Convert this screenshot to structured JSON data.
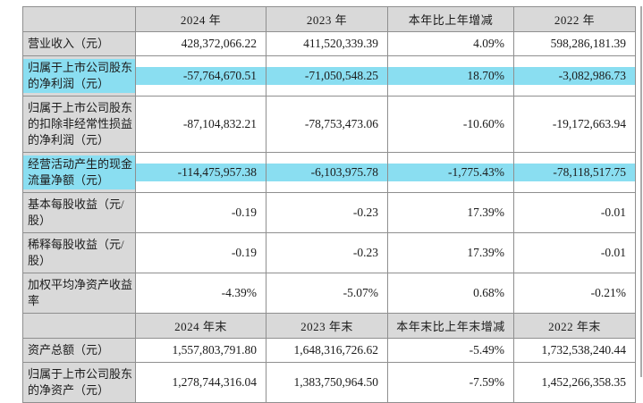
{
  "colors": {
    "page_bg": "#ffffff",
    "header_bg": "#d9d9d9",
    "label_bg": "#d9d9d9",
    "highlight": "#8adef1",
    "border": "#8f8f8f",
    "text": "#1b1b1b"
  },
  "table": {
    "sections": [
      {
        "name": "annual-results",
        "columns": [
          "",
          "2024 年",
          "2023 年",
          "本年比上年增减",
          "2022 年"
        ],
        "rows": [
          {
            "label": "营业收入（元）",
            "values": [
              "428,372,066.22",
              "411,520,339.39",
              "4.09%",
              "598,286,181.39"
            ],
            "highlight": false
          },
          {
            "label": "归属于上市公司股东的净利润（元）",
            "values": [
              "-57,764,670.51",
              "-71,050,548.25",
              "18.70%",
              "-3,082,986.73"
            ],
            "highlight": true
          },
          {
            "label": "归属于上市公司股东的扣除非经常性损益的净利润（元）",
            "values": [
              "-87,104,832.21",
              "-78,753,473.06",
              "-10.60%",
              "-19,172,663.94"
            ],
            "highlight": false
          },
          {
            "label": "经营活动产生的现金流量净额（元）",
            "values": [
              "-114,475,957.38",
              "-6,103,975.78",
              "-1,775.43%",
              "-78,118,517.75"
            ],
            "highlight": true
          },
          {
            "label": "基本每股收益（元/股）",
            "values": [
              "-0.19",
              "-0.23",
              "17.39%",
              "-0.01"
            ],
            "highlight": false
          },
          {
            "label": "稀释每股收益（元/股）",
            "values": [
              "-0.19",
              "-0.23",
              "17.39%",
              "-0.01"
            ],
            "highlight": false
          },
          {
            "label": "加权平均净资产收益率",
            "values": [
              "-4.39%",
              "-5.07%",
              "0.68%",
              "-0.21%"
            ],
            "highlight": false
          }
        ]
      },
      {
        "name": "year-end-position",
        "columns": [
          "",
          "2024 年末",
          "2023 年末",
          "本年末比上年末增减",
          "2022 年末"
        ],
        "rows": [
          {
            "label": "资产总额（元）",
            "values": [
              "1,557,803,791.80",
              "1,648,316,726.62",
              "-5.49%",
              "1,732,538,240.44"
            ],
            "highlight": false
          },
          {
            "label": "归属于上市公司股东的净资产（元）",
            "values": [
              "1,278,744,316.04",
              "1,383,750,964.50",
              "-7.59%",
              "1,452,266,358.35"
            ],
            "highlight": false
          }
        ]
      }
    ]
  }
}
